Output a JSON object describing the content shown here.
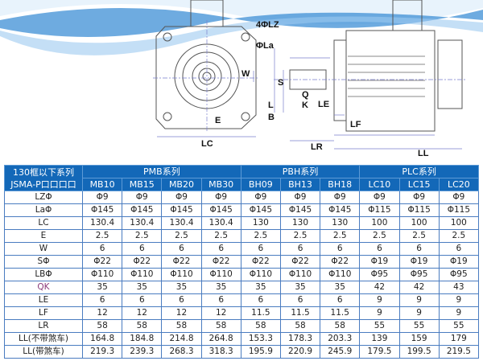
{
  "drawing_labels": {
    "lz": "4ΦLZ",
    "la": "ΦLa",
    "w": "W",
    "e": "E",
    "lc": "LC",
    "s": "S",
    "q": "Q",
    "k": "K",
    "l": "L",
    "b": "B",
    "le": "LE",
    "lf": "LF",
    "lr": "LR",
    "ll": "LL"
  },
  "colors": {
    "header_bg": "#1368b8",
    "border": "#4a7cc0",
    "wave": "#3d8fd6"
  },
  "table": {
    "corner": [
      "130框以下系列",
      "JSMA-P口口口口"
    ],
    "groups": [
      "PMB系列",
      "PBH系列",
      "PLC系列"
    ],
    "models": [
      "MB10",
      "MB15",
      "MB20",
      "MB30",
      "BH09",
      "BH13",
      "BH18",
      "LC10",
      "LC15",
      "LC20"
    ],
    "rows": [
      {
        "label": "LZΦ",
        "values": [
          "Φ9",
          "Φ9",
          "Φ9",
          "Φ9",
          "Φ9",
          "Φ9",
          "Φ9",
          "Φ9",
          "Φ9",
          "Φ9"
        ]
      },
      {
        "label": "LaΦ",
        "values": [
          "Φ145",
          "Φ145",
          "Φ145",
          "Φ145",
          "Φ145",
          "Φ145",
          "Φ145",
          "Φ115",
          "Φ115",
          "Φ115"
        ]
      },
      {
        "label": "LC",
        "values": [
          "130.4",
          "130.4",
          "130.4",
          "130.4",
          "130",
          "130",
          "130",
          "100",
          "100",
          "100"
        ]
      },
      {
        "label": "E",
        "values": [
          "2.5",
          "2.5",
          "2.5",
          "2.5",
          "2.5",
          "2.5",
          "2.5",
          "2.5",
          "2.5",
          "2.5"
        ]
      },
      {
        "label": "W",
        "values": [
          "6",
          "6",
          "6",
          "6",
          "6",
          "6",
          "6",
          "6",
          "6",
          "6"
        ]
      },
      {
        "label": "SΦ",
        "values": [
          "Φ22",
          "Φ22",
          "Φ22",
          "Φ22",
          "Φ22",
          "Φ22",
          "Φ22",
          "Φ19",
          "Φ19",
          "Φ19"
        ]
      },
      {
        "label": "LBΦ",
        "values": [
          "Φ110",
          "Φ110",
          "Φ110",
          "Φ110",
          "Φ110",
          "Φ110",
          "Φ110",
          "Φ95",
          "Φ95",
          "Φ95"
        ]
      },
      {
        "label": "QK",
        "values": [
          "35",
          "35",
          "35",
          "35",
          "35",
          "35",
          "35",
          "42",
          "42",
          "43"
        ]
      },
      {
        "label": "LE",
        "values": [
          "6",
          "6",
          "6",
          "6",
          "6",
          "6",
          "6",
          "9",
          "9",
          "9"
        ]
      },
      {
        "label": "LF",
        "values": [
          "12",
          "12",
          "12",
          "12",
          "11.5",
          "11.5",
          "11.5",
          "9",
          "9",
          "9"
        ]
      },
      {
        "label": "LR",
        "values": [
          "58",
          "58",
          "58",
          "58",
          "58",
          "58",
          "58",
          "55",
          "55",
          "55"
        ]
      },
      {
        "label": "LL(不带煞车)",
        "values": [
          "164.8",
          "184.8",
          "214.8",
          "264.8",
          "153.3",
          "178.3",
          "203.3",
          "139",
          "159",
          "179"
        ]
      },
      {
        "label": "LL(带煞车)",
        "values": [
          "219.3",
          "239.3",
          "268.3",
          "318.3",
          "195.9",
          "220.9",
          "245.9",
          "179.5",
          "199.5",
          "219.5"
        ]
      }
    ]
  }
}
